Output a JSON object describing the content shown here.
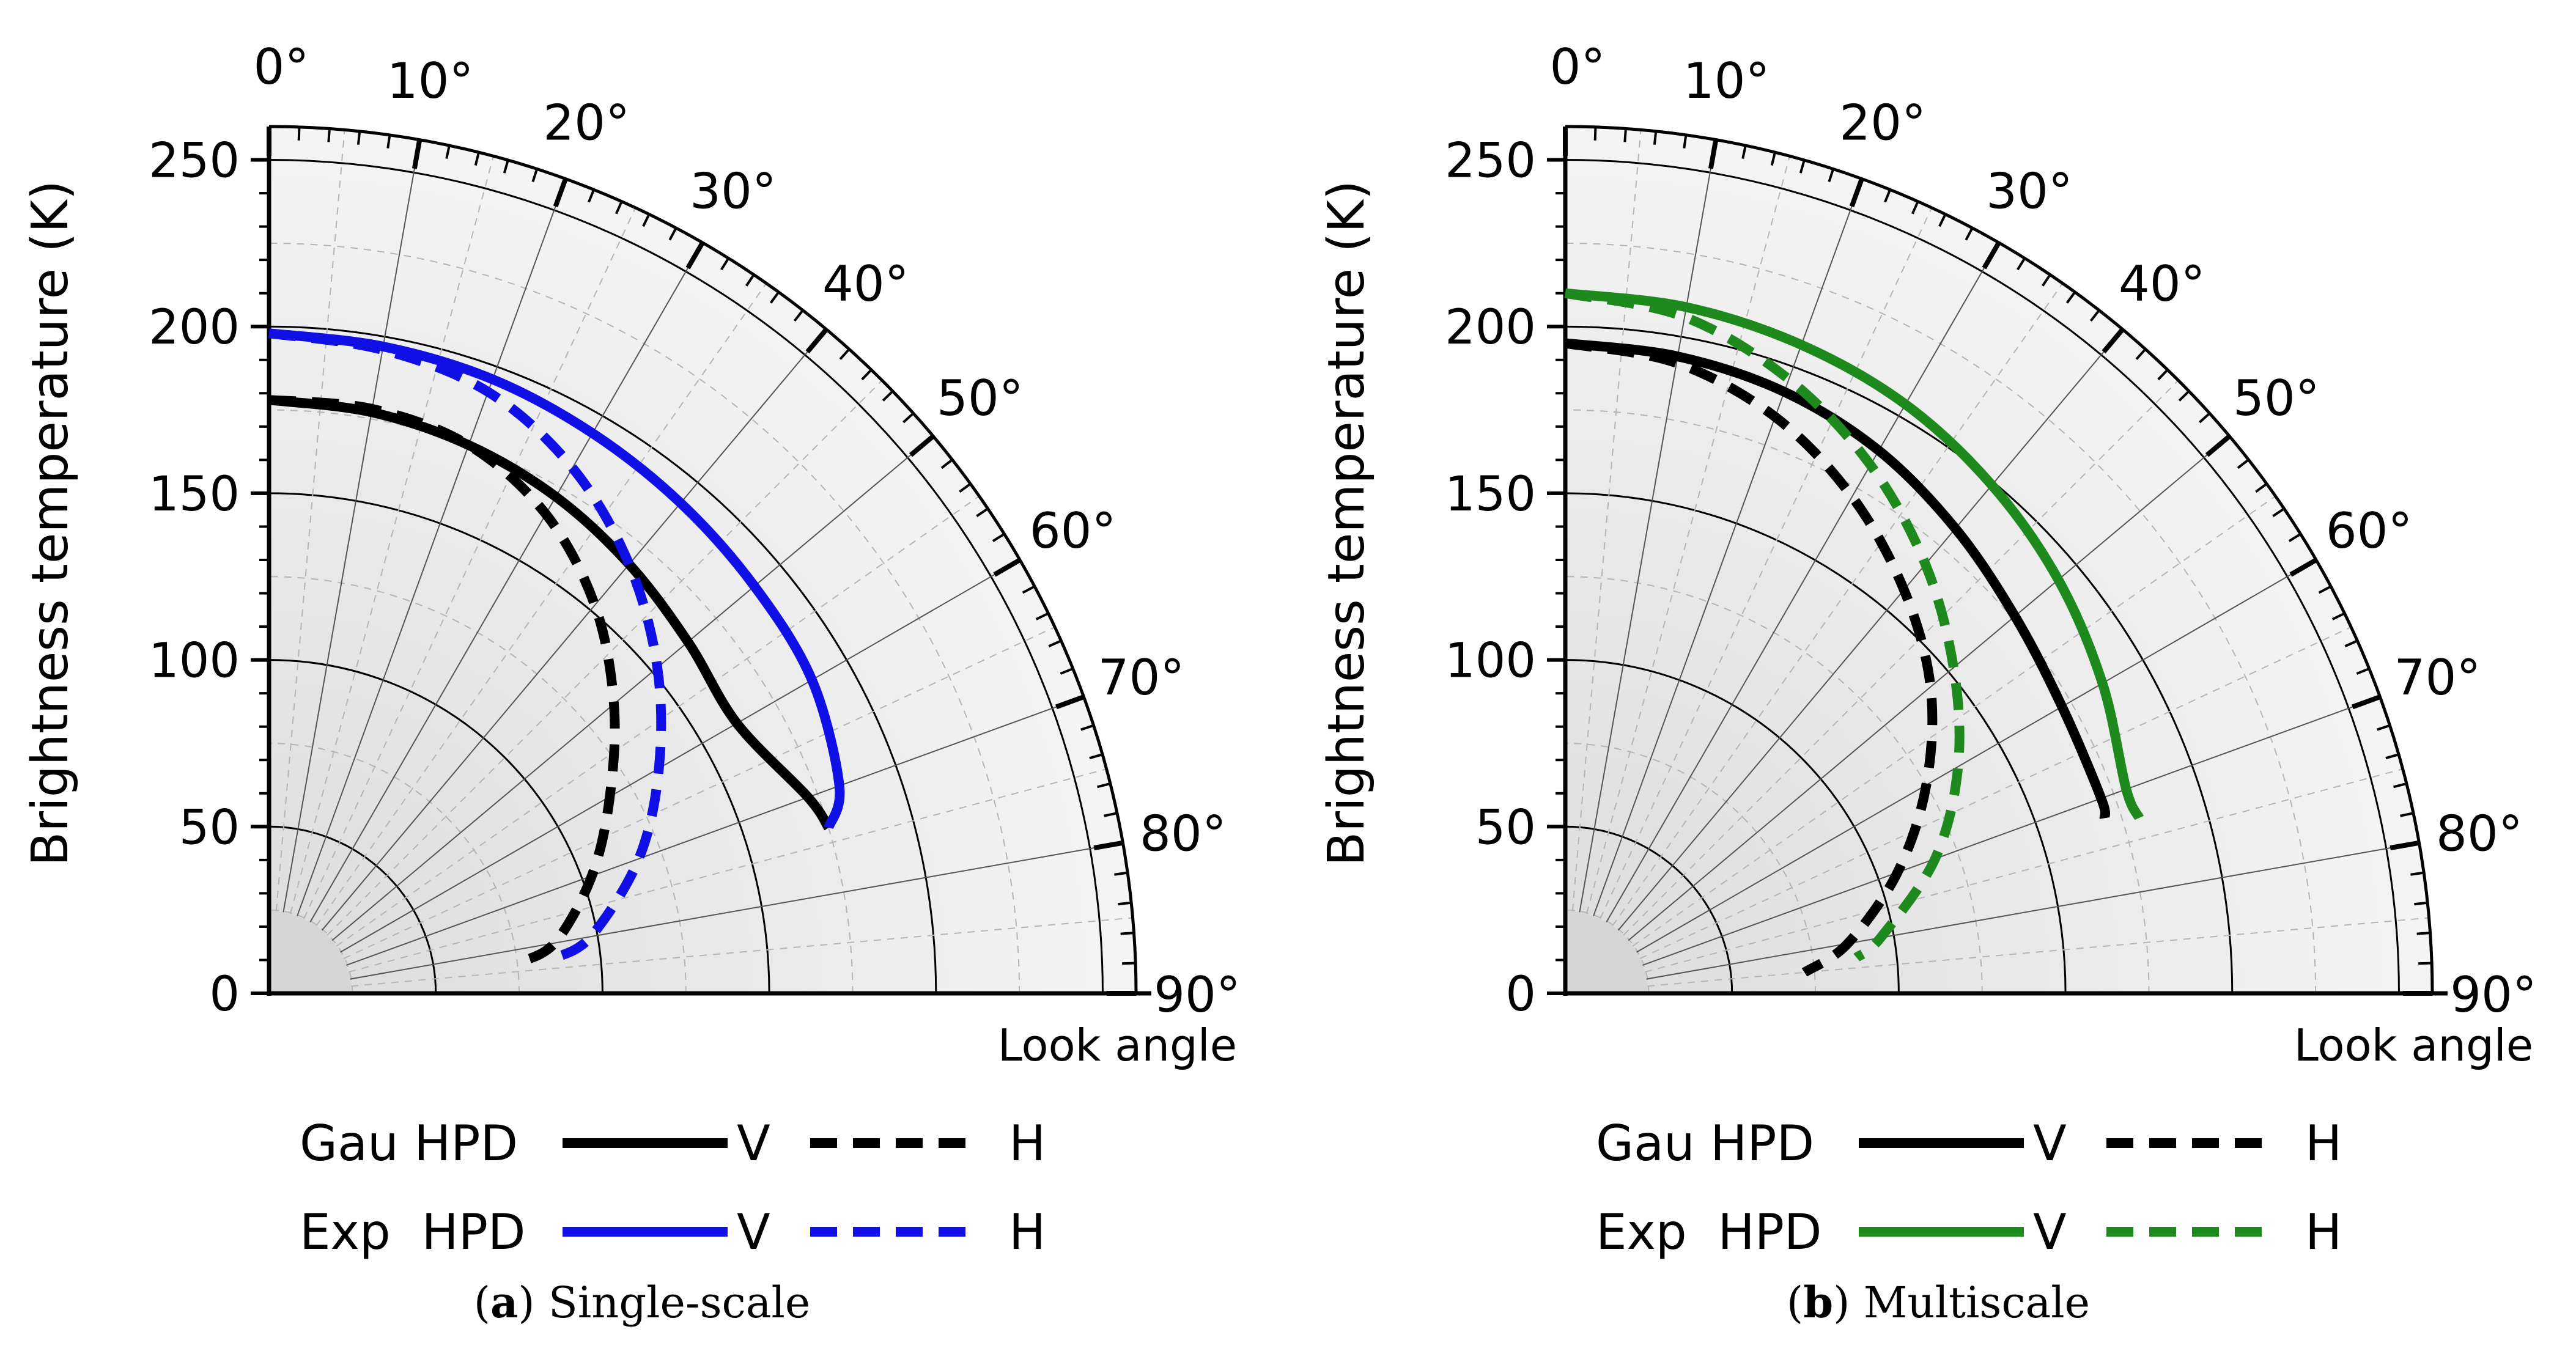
{
  "colors": {
    "black": "#000000",
    "blue": "#1010e6",
    "green": "#1e8a1e",
    "background": "#e8e8e8"
  },
  "chart_data": [
    {
      "type": "polar-line",
      "caption": {
        "label": "a",
        "text": "Single-scale"
      },
      "ylabel": "Brightness temperature (K)",
      "angle_label": "Look angle",
      "radial_ticks": [
        "0",
        "50",
        "100",
        "150",
        "200",
        "250"
      ],
      "angle_ticks": [
        "0°",
        "10°",
        "20°",
        "30°",
        "40°",
        "50°",
        "60°",
        "70°",
        "80°",
        "90°"
      ],
      "rlim": [
        0,
        260
      ],
      "legend": [
        {
          "model": "Gau HPD",
          "v": "V",
          "h": "H",
          "color": "#000000"
        },
        {
          "model": "Exp  HPD",
          "v": "V",
          "h": "H",
          "color": "#1010e6"
        }
      ],
      "series": [
        {
          "name": "Gau HPD V",
          "pol": "V",
          "color": "#000000",
          "dashed": false,
          "points": [
            [
              0,
              178
            ],
            [
              10,
              177
            ],
            [
              20,
              175
            ],
            [
              30,
              172
            ],
            [
              40,
              168
            ],
            [
              50,
              164
            ],
            [
              60,
              162
            ],
            [
              70,
              172
            ],
            [
              73.5,
              175
            ]
          ]
        },
        {
          "name": "Exp HPD V",
          "pol": "V",
          "color": "#1010e6",
          "dashed": false,
          "points": [
            [
              0,
              198
            ],
            [
              10,
              197
            ],
            [
              20,
              196
            ],
            [
              30,
              194
            ],
            [
              40,
              192
            ],
            [
              50,
              190
            ],
            [
              60,
              188
            ],
            [
              70,
              182
            ],
            [
              73.5,
              175
            ]
          ]
        },
        {
          "name": "Gau HPD H",
          "pol": "H",
          "color": "#000000",
          "dashed": false,
          "points": [
            [
              0,
              178
            ],
            [
              10,
              178
            ],
            [
              20,
              175
            ],
            [
              30,
              166
            ],
            [
              40,
              152
            ],
            [
              50,
              135
            ],
            [
              60,
              118
            ],
            [
              70,
              103
            ],
            [
              80,
              87
            ],
            [
              83,
              75
            ]
          ],
          "dash_from_angle": 15
        },
        {
          "name": "Exp HPD H",
          "pol": "H",
          "color": "#1010e6",
          "dashed": false,
          "points": [
            [
              0,
              198
            ],
            [
              10,
              196
            ],
            [
              20,
              192
            ],
            [
              30,
              182
            ],
            [
              40,
              168
            ],
            [
              50,
              152
            ],
            [
              60,
              135
            ],
            [
              70,
              118
            ],
            [
              80,
              98
            ],
            [
              83,
              86
            ]
          ],
          "dash_from_angle": 15
        }
      ]
    },
    {
      "type": "polar-line",
      "caption": {
        "label": "b",
        "text": "Multiscale"
      },
      "ylabel": "Brightness temperature (K)",
      "angle_label": "Look angle",
      "radial_ticks": [
        "0",
        "50",
        "100",
        "150",
        "200",
        "250"
      ],
      "angle_ticks": [
        "0°",
        "10°",
        "20°",
        "30°",
        "40°",
        "50°",
        "60°",
        "70°",
        "80°",
        "90°"
      ],
      "rlim": [
        0,
        260
      ],
      "legend": [
        {
          "model": "Gau HPD",
          "v": "V",
          "h": "H",
          "color": "#000000"
        },
        {
          "model": "Exp  HPD",
          "v": "V",
          "h": "H",
          "color": "#1e8a1e"
        }
      ],
      "series": [
        {
          "name": "Gau HPD V",
          "pol": "V",
          "color": "#000000",
          "dashed": false,
          "points": [
            [
              0,
              195
            ],
            [
              10,
              194
            ],
            [
              20,
              192
            ],
            [
              30,
              188
            ],
            [
              40,
              182
            ],
            [
              50,
              176
            ],
            [
              60,
              172
            ],
            [
              70,
              171
            ],
            [
              72,
              170
            ]
          ]
        },
        {
          "name": "Exp HPD V",
          "pol": "V",
          "color": "#1e8a1e",
          "dashed": false,
          "points": [
            [
              0,
              210
            ],
            [
              10,
              209
            ],
            [
              20,
              207
            ],
            [
              30,
              204
            ],
            [
              40,
              199
            ],
            [
              50,
              193
            ],
            [
              60,
              186
            ],
            [
              70,
              179
            ],
            [
              73,
              180
            ]
          ]
        },
        {
          "name": "Gau HPD H",
          "pol": "H",
          "color": "#000000",
          "dashed": false,
          "points": [
            [
              0,
              195
            ],
            [
              10,
              192
            ],
            [
              20,
              184
            ],
            [
              30,
              172
            ],
            [
              40,
              158
            ],
            [
              50,
              143
            ],
            [
              60,
              125
            ],
            [
              70,
              106
            ],
            [
              80,
              86
            ],
            [
              85,
              72
            ]
          ],
          "dash_from_angle": 20
        },
        {
          "name": "Exp HPD H",
          "pol": "H",
          "color": "#1e8a1e",
          "dashed": false,
          "points": [
            [
              0,
              210
            ],
            [
              10,
              206
            ],
            [
              20,
              196
            ],
            [
              30,
              183
            ],
            [
              40,
              168
            ],
            [
              50,
              152
            ],
            [
              60,
              136
            ],
            [
              70,
              118
            ],
            [
              80,
              96
            ],
            [
              83,
              88
            ]
          ],
          "dash_from_angle": 20
        }
      ]
    }
  ]
}
